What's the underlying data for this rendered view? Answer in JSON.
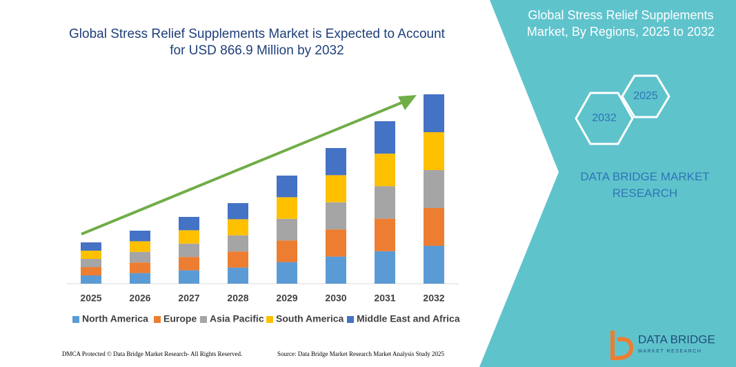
{
  "chart_data": {
    "type": "bar",
    "stacked": true,
    "title": "Global Stress Relief Supplements Market is Expected to Account for USD 866.9 Million by 2032",
    "categories": [
      "2025",
      "2026",
      "2027",
      "2028",
      "2029",
      "2030",
      "2031",
      "2032"
    ],
    "series": [
      {
        "name": "North America",
        "color": "#5b9bd5",
        "values": [
          12,
          15.4,
          19.4,
          23.4,
          31.4,
          39.4,
          47.2,
          55
        ]
      },
      {
        "name": "Europe",
        "color": "#ed7d31",
        "values": [
          12,
          15.4,
          19.4,
          23.4,
          31.4,
          39.4,
          47.2,
          55
        ]
      },
      {
        "name": "Asia Pacific",
        "color": "#a5a5a5",
        "values": [
          12,
          15.4,
          19.4,
          23.4,
          31.4,
          39.4,
          47.2,
          55
        ]
      },
      {
        "name": "South America",
        "color": "#ffc000",
        "values": [
          12,
          15.4,
          19.4,
          23.4,
          31.4,
          39.4,
          47.2,
          55
        ]
      },
      {
        "name": "Middle East and Africa",
        "color": "#4472c4",
        "values": [
          12,
          15.4,
          19.4,
          23.4,
          31.4,
          39.4,
          47.2,
          55
        ]
      }
    ]
  },
  "panel": {
    "title": "Global Stress Relief Supplements Market, By Regions, 2025 to 2032",
    "hexagons": [
      "2032",
      "2025"
    ],
    "brand": "DATA BRIDGE MARKET RESEARCH"
  },
  "footer": {
    "left": "DMCA Protected © Data Bridge Market Research- All Rights Reserved.",
    "right": "Source: Data Bridge Market Research  Market Analysis Study 2025"
  },
  "logo": {
    "name": "DATA BRIDGE",
    "tagline": "MARKET RESEARCH"
  }
}
